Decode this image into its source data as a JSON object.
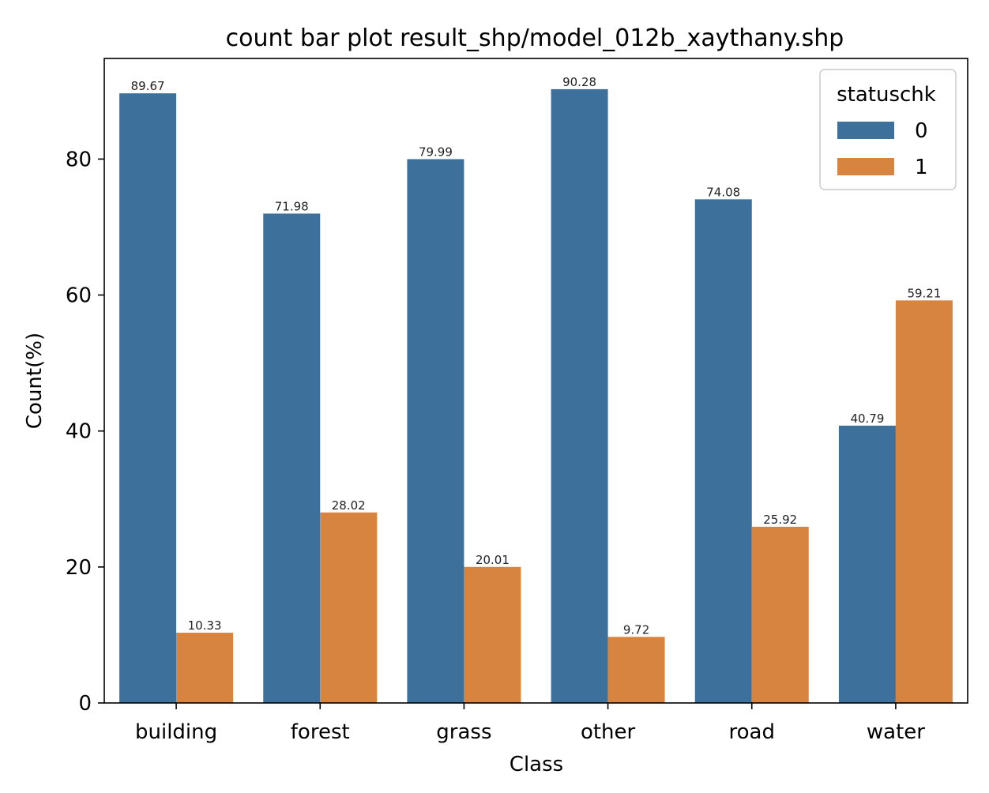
{
  "chart_data": {
    "type": "bar",
    "title": "count bar plot result_shp/model_012b_xaythany.shp",
    "xlabel": "Class",
    "ylabel": "Count(%)",
    "categories": [
      "building",
      "forest",
      "grass",
      "other",
      "road",
      "water"
    ],
    "series": [
      {
        "name": "0",
        "color": "#3d719c",
        "values": [
          89.67,
          71.98,
          79.99,
          90.28,
          74.08,
          40.79
        ]
      },
      {
        "name": "1",
        "color": "#d6843f",
        "values": [
          10.33,
          28.02,
          20.01,
          9.72,
          25.92,
          59.21
        ]
      }
    ],
    "data_labels": [
      [
        "89.67",
        "71.98",
        "79.99",
        "90.28",
        "74.08",
        "40.79"
      ],
      [
        "10.33",
        "28.02",
        "20.01",
        "9.72",
        "25.92",
        "59.21"
      ]
    ],
    "ylim": [
      0,
      94.8
    ],
    "yticks": [
      0,
      20,
      40,
      60,
      80
    ],
    "legend": {
      "title": "statuschk",
      "placement": "top-right"
    },
    "grid": false
  }
}
